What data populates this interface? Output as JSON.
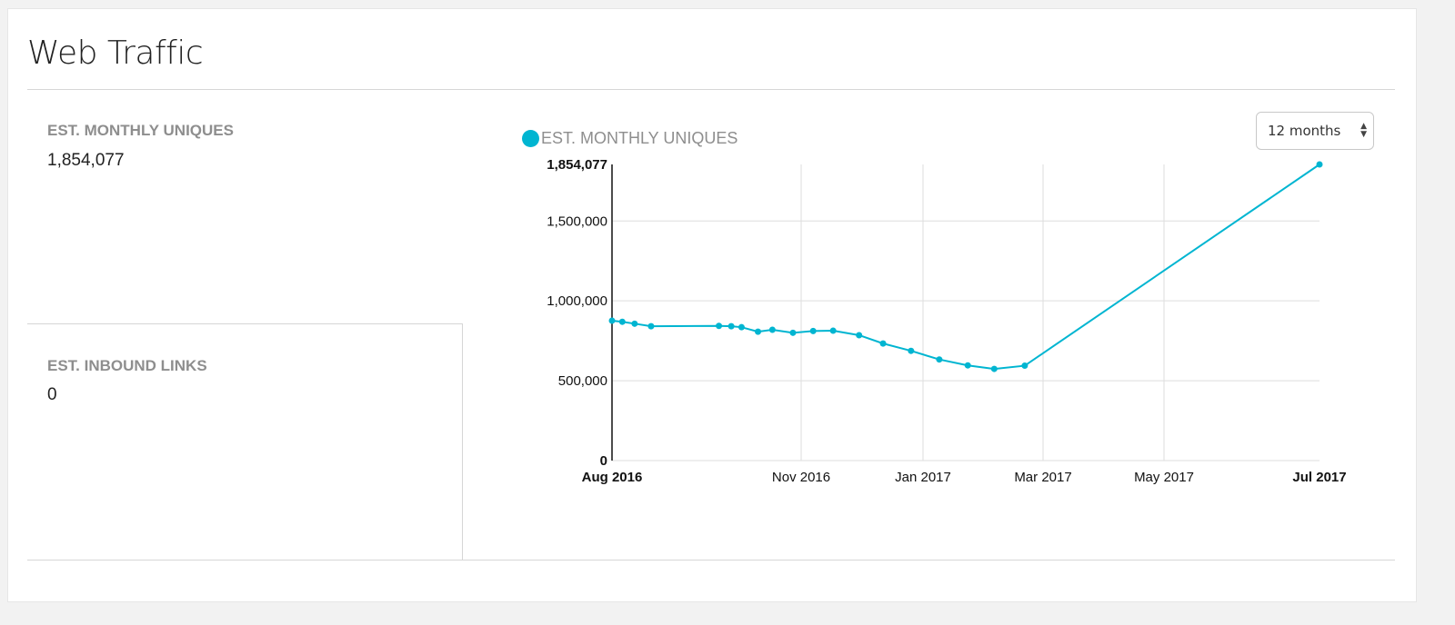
{
  "header": {
    "title": "Web Traffic"
  },
  "stats": {
    "monthly_uniques_label": "EST. MONTHLY UNIQUES",
    "monthly_uniques_value": "1,854,077",
    "inbound_links_label": "EST. INBOUND LINKS",
    "inbound_links_value": "0"
  },
  "range_select": {
    "selected": "12 months"
  },
  "colors": {
    "accent": "#00b5d1",
    "grid": "#dddddd"
  },
  "chart_data": {
    "type": "line",
    "legend": [
      {
        "name": "EST. MONTHLY UNIQUES",
        "color": "#00b5d1"
      }
    ],
    "legend_placement": "top-left",
    "grid": true,
    "ylim": [
      0,
      1854077
    ],
    "xlim": [
      "2016-08-01",
      "2017-07-20"
    ],
    "y_ticks": [
      {
        "value": 0,
        "label": "0",
        "bold": true
      },
      {
        "value": 500000,
        "label": "500,000"
      },
      {
        "value": 1000000,
        "label": "1,000,000"
      },
      {
        "value": 1500000,
        "label": "1,500,000"
      },
      {
        "value": 1854077,
        "label": "1,854,077",
        "bold": true
      }
    ],
    "x_ticks": [
      {
        "date": "2016-08-01",
        "label": "Aug 2016",
        "bold": true
      },
      {
        "date": "2016-11-01",
        "label": "Nov 2016"
      },
      {
        "date": "2017-01-01",
        "label": "Jan 2017"
      },
      {
        "date": "2017-03-01",
        "label": "Mar 2017"
      },
      {
        "date": "2017-05-01",
        "label": "May 2017"
      },
      {
        "date": "2017-07-20",
        "label": "Jul 2017",
        "bold": true
      }
    ],
    "series": [
      {
        "name": "EST. MONTHLY UNIQUES",
        "points": [
          [
            "2016-08-01",
            876000
          ],
          [
            "2016-08-06",
            869000
          ],
          [
            "2016-08-12",
            857000
          ],
          [
            "2016-08-20",
            841000
          ],
          [
            "2016-09-22",
            843000
          ],
          [
            "2016-09-28",
            841000
          ],
          [
            "2016-10-03",
            835000
          ],
          [
            "2016-10-11",
            807000
          ],
          [
            "2016-10-18",
            819000
          ],
          [
            "2016-10-28",
            800000
          ],
          [
            "2016-11-07",
            811000
          ],
          [
            "2016-11-17",
            813000
          ],
          [
            "2016-11-30",
            785000
          ],
          [
            "2016-12-12",
            733000
          ],
          [
            "2016-12-26",
            687000
          ],
          [
            "2017-01-09",
            633000
          ],
          [
            "2017-01-23",
            596000
          ],
          [
            "2017-02-05",
            574000
          ],
          [
            "2017-02-20",
            594000
          ],
          [
            "2017-07-20",
            1854077
          ]
        ]
      }
    ]
  }
}
